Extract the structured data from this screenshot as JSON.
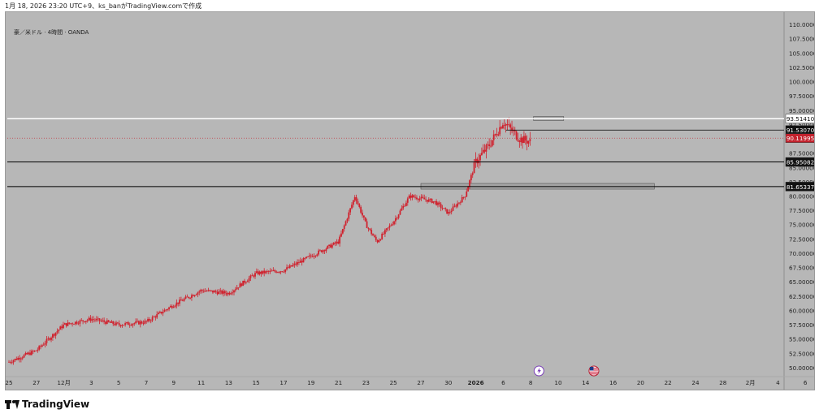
{
  "header": {
    "caption": "1月 18, 2026 23:20 UTC+9、ks_banがTradingView.comで作成"
  },
  "symbol": {
    "title": "豪／米ドル · 4時間 · OANDA"
  },
  "brand": {
    "name": "TradingView"
  },
  "colors": {
    "background": "#b7b7b7",
    "candle": "#d0212d",
    "level_line": "#000000",
    "resistance_line": "#ffffff",
    "current_price_tag": "#c3222d",
    "zone_fill": "#a4a4a4"
  },
  "chart_data": {
    "type": "candlestick",
    "title": "豪／米ドル · 4時間 · OANDA",
    "ylim": [
      49.0,
      111.0
    ],
    "y_ticks": [
      "110.00000",
      "107.50000",
      "105.00000",
      "102.50000",
      "100.00000",
      "97.50000",
      "95.00000",
      "92.50000",
      "90.00000",
      "87.50000",
      "85.00000",
      "82.50000",
      "80.00000",
      "77.50000",
      "75.00000",
      "72.50000",
      "70.00000",
      "67.50000",
      "65.00000",
      "62.50000",
      "60.00000",
      "57.50000",
      "55.00000",
      "52.50000",
      "50.00000"
    ],
    "x_labels": [
      "25",
      "27",
      "12月",
      "3",
      "5",
      "7",
      "9",
      "11",
      "13",
      "15",
      "17",
      "19",
      "21",
      "23",
      "25",
      "27",
      "30",
      "2026",
      "6",
      "8",
      "10",
      "14",
      "16",
      "20",
      "22",
      "24",
      "28",
      "2月",
      "4",
      "6",
      "10"
    ],
    "x_label_slots": [
      0,
      1,
      2,
      3,
      4,
      5,
      6,
      7,
      8,
      9,
      10,
      11,
      12,
      13,
      14,
      15,
      16,
      17,
      18,
      19,
      20,
      21,
      22,
      23,
      24,
      25,
      26,
      27,
      28,
      29,
      30
    ],
    "price_trend": [
      [
        0,
        51.0
      ],
      [
        1,
        53.0
      ],
      [
        2,
        57.5
      ],
      [
        3,
        58.5
      ],
      [
        4,
        57.5
      ],
      [
        5,
        58.0
      ],
      [
        6,
        61.0
      ],
      [
        7,
        63.5
      ],
      [
        8,
        63.0
      ],
      [
        9,
        66.5
      ],
      [
        10,
        67.0
      ],
      [
        11,
        69.5
      ],
      [
        12,
        72.0
      ],
      [
        12.6,
        80.0
      ],
      [
        13,
        75.0
      ],
      [
        13.4,
        72.0
      ],
      [
        14,
        75.5
      ],
      [
        14.6,
        80.0
      ],
      [
        15.5,
        79.0
      ],
      [
        16,
        77.0
      ],
      [
        16.6,
        80.0
      ],
      [
        17,
        86.0
      ],
      [
        17.5,
        89.0
      ],
      [
        18,
        93.0
      ],
      [
        18.6,
        90.0
      ],
      [
        19,
        89.5
      ]
    ],
    "levels": [
      {
        "label": "93.51410",
        "value": 93.5141,
        "kind": "resistance"
      },
      {
        "label": "91.53070",
        "value": 91.5307,
        "kind": "swing-high"
      },
      {
        "label": "90.11995",
        "value": 90.11995,
        "kind": "current"
      },
      {
        "label": "85.95082",
        "value": 85.95082,
        "kind": "support"
      },
      {
        "label": "81.65337",
        "value": 81.65337,
        "kind": "support"
      }
    ],
    "zones": [
      {
        "from": 81.2,
        "to": 82.2,
        "x_start": 15.0,
        "x_end": 23.5
      },
      {
        "from": 93.2,
        "to": 93.9,
        "x_start": 19.1,
        "x_end": 20.2
      }
    ],
    "events": [
      {
        "x": 19.3,
        "icon": "lightning-icon"
      },
      {
        "x": 21.3,
        "icon": "us-flag-icon"
      }
    ]
  }
}
